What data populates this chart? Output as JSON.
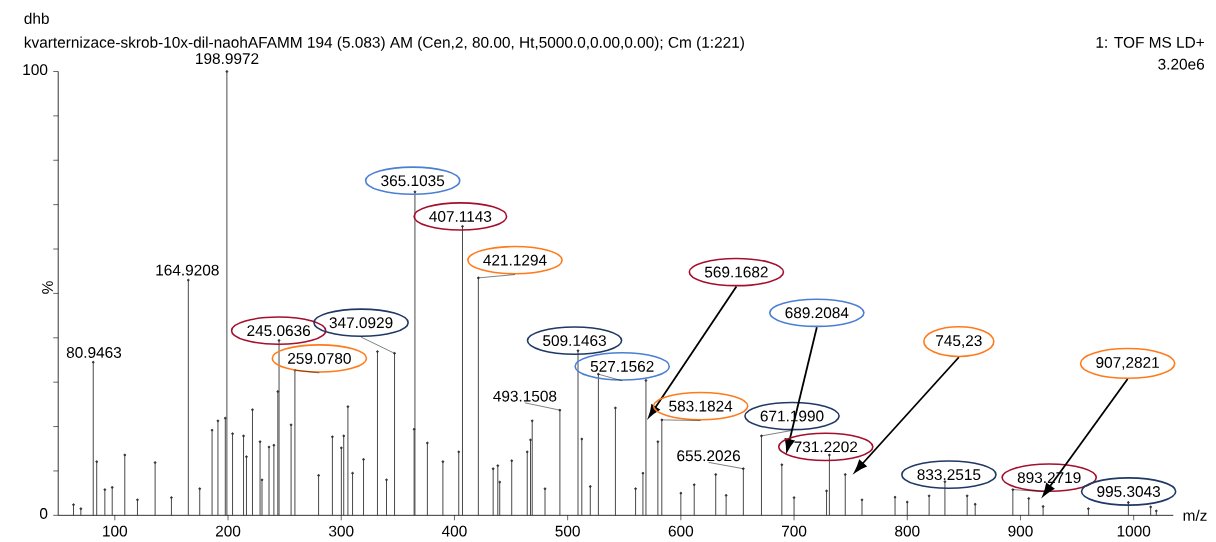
{
  "chart_data": {
    "type": "lollipop",
    "marker": "circle",
    "title": "dhb",
    "subtitle": "kvarternizace-skrob-10x-dil-naohAFAMM 194 (5.083) AM (Cen,2, 80.00, Ht,5000.0,0.00,0.00); Cm (1:221)",
    "xlabel": "m/z",
    "ylabel": "%",
    "color": "#333333",
    "x": [
      63.5,
      70,
      80.9463,
      84.0,
      91.2,
      97.7,
      108.8,
      120,
      135.6,
      150,
      164.9208,
      175,
      185.9,
      191.1,
      197.6,
      198.9972,
      204.0,
      213.7,
      216.3,
      221.6,
      228.3,
      230,
      236.2,
      240.5,
      244.0,
      245.0636,
      255.7,
      259.078,
      280,
      292.2,
      300.1,
      302.2,
      305.9,
      310,
      319.7,
      332.0,
      340,
      347.0929,
      364.4,
      365.1035,
      376.1,
      389.8,
      403.8,
      407.1143,
      421.1294,
      434.2,
      438.3,
      440,
      450.6,
      464.3,
      467.2,
      468.7,
      480,
      493.1508,
      509.1463,
      512.5,
      520,
      527.1562,
      542.2,
      560,
      566.5,
      569.1682,
      579.7,
      583.1824,
      600,
      611.8,
      630.8,
      640,
      655.2026,
      671.199,
      689.2084,
      700,
      728.7,
      731.2202,
      745.23,
      760,
      789.2,
      800,
      819.3,
      833.2515,
      852.9,
      860,
      893.2719,
      907.2821,
      920,
      960,
      995.3043,
      1015,
      1020
    ],
    "values": [
      2.4,
      1.5,
      34.5,
      12.1,
      5.8,
      6.3,
      13.6,
      3.5,
      11.9,
      4,
      53.0,
      6,
      19.2,
      21.3,
      21.9,
      100,
      18.4,
      17.9,
      13.2,
      23.8,
      16.6,
      8,
      15.4,
      15.8,
      27.9,
      39.4,
      20.4,
      32.7,
      9,
      17.7,
      15.2,
      17.9,
      24.5,
      9.5,
      12.6,
      36.9,
      8,
      36.5,
      19.4,
      72.9,
      16.3,
      12.1,
      14.3,
      65.1,
      53.5,
      10.5,
      11.2,
      7.5,
      12.3,
      14.3,
      17.0,
      21.3,
      6,
      23.7,
      37.1,
      17.2,
      6.5,
      31.8,
      24.2,
      6,
      9.5,
      30.4,
      16.6,
      21.5,
      5,
      6.9,
      9.2,
      4.5,
      10.5,
      17.9,
      11.4,
      4,
      5.5,
      13.6,
      9.2,
      3.5,
      4.1,
      3,
      4.4,
      7.6,
      4.4,
      2.5,
      5.8,
      3.8,
      2,
      1.5,
      2.9,
      1.9,
      1
    ],
    "xlim": [
      50,
      1035
    ],
    "ylim": [
      0,
      100
    ],
    "xticks": [
      100,
      200,
      300,
      400,
      500,
      600,
      700,
      800,
      900,
      1000
    ],
    "yticks": [
      0,
      {
        "value": 10,
        "label": null
      },
      {
        "value": 20,
        "label": null
      },
      {
        "value": 30,
        "label": null
      },
      {
        "value": 40,
        "label": null
      },
      {
        "value": 50,
        "label": null
      },
      {
        "value": 60,
        "label": null
      },
      {
        "value": 70,
        "label": null
      },
      {
        "value": 80,
        "label": null
      },
      {
        "value": 90,
        "label": null
      },
      100
    ],
    "annotations": [
      "1: TOF MS LD+",
      "3.20e6",
      {
        "text": "80.9463",
        "x": 80.9463,
        "y": 34.5
      },
      {
        "text": "164.9208",
        "x": 164.9208,
        "y": 53.0
      },
      {
        "text": "198.9972",
        "x": 198.9972,
        "y": 100
      },
      {
        "text": "245.0636",
        "x": 245.0636,
        "y": 39.4
      },
      {
        "text": "259.0780",
        "x": 259.078,
        "y": 32.7
      },
      {
        "text": "347.0929",
        "x": 347.0929,
        "y": 36.5
      },
      {
        "text": "365.1035",
        "x": 365.1035,
        "y": 72.9
      },
      {
        "text": "407.1143",
        "x": 407.1143,
        "y": 65.1
      },
      {
        "text": "421.1294",
        "x": 421.1294,
        "y": 53.5
      },
      {
        "text": "493.1508",
        "x": 493.1508,
        "y": 23.7
      },
      {
        "text": "509.1463",
        "x": 509.1463,
        "y": 37.1
      },
      {
        "text": "527.1562",
        "x": 527.1562,
        "y": 31.8
      },
      "569.1682",
      {
        "text": "583.1824",
        "x": 583.1824,
        "y": 21.5
      },
      {
        "text": "655.2026",
        "x": 655.2026,
        "y": 10.5
      },
      {
        "text": "671.1990",
        "x": 671.199,
        "y": 17.9
      },
      "689.2084",
      {
        "text": "731.2202",
        "x": 731.2202,
        "y": 13.6
      },
      "745,23",
      {
        "text": "833.2515",
        "x": 833.2515,
        "y": 7.6
      },
      {
        "text": "893.2719",
        "x": 893.2719,
        "y": 5.8
      },
      "907,2821",
      {
        "text": "995.3043",
        "x": 995.3043,
        "y": 2.9
      }
    ]
  }
}
